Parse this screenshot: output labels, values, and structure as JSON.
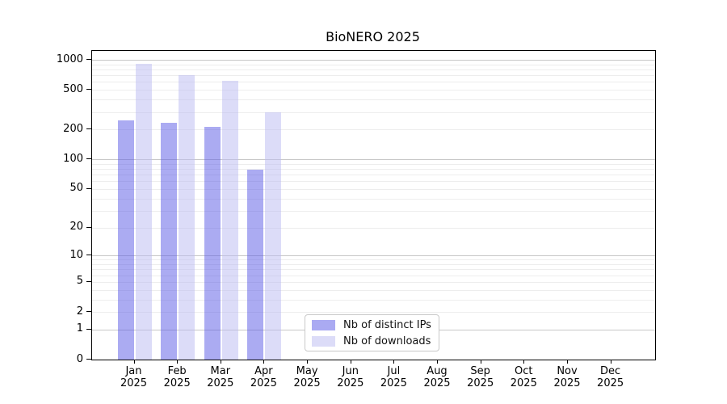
{
  "title": "BioNERO 2025",
  "legend": {
    "items": [
      {
        "label": "Nb of distinct IPs",
        "swatch_color": "#aaaaf2",
        "bar_fill": "rgba(87,87,229,0.5)"
      },
      {
        "label": "Nb of downloads",
        "swatch_color": "#dcdcf8",
        "bar_fill": "rgba(185,185,241,0.5)"
      }
    ]
  },
  "chart_data": {
    "type": "bar",
    "title": "BioNERO 2025",
    "xlabel": "",
    "ylabel": "",
    "yscale": "symlog(ln(1+v))",
    "ylim": [
      0,
      1230
    ],
    "grid": "horizontal major+minor",
    "legend_position": "lower center-left inside plot",
    "categories": [
      "Jan 2025",
      "Feb 2025",
      "Mar 2025",
      "Apr 2025",
      "May 2025",
      "Jun 2025",
      "Jul 2025",
      "Aug 2025",
      "Sep 2025",
      "Oct 2025",
      "Nov 2025",
      "Dec 2025"
    ],
    "category_lines": [
      {
        "month": "Jan",
        "year": "2025"
      },
      {
        "month": "Feb",
        "year": "2025"
      },
      {
        "month": "Mar",
        "year": "2025"
      },
      {
        "month": "Apr",
        "year": "2025"
      },
      {
        "month": "May",
        "year": "2025"
      },
      {
        "month": "Jun",
        "year": "2025"
      },
      {
        "month": "Jul",
        "year": "2025"
      },
      {
        "month": "Aug",
        "year": "2025"
      },
      {
        "month": "Sep",
        "year": "2025"
      },
      {
        "month": "Oct",
        "year": "2025"
      },
      {
        "month": "Nov",
        "year": "2025"
      },
      {
        "month": "Dec",
        "year": "2025"
      }
    ],
    "yticks": [
      0,
      1,
      2,
      5,
      10,
      20,
      50,
      100,
      200,
      500,
      1000
    ],
    "ytick_labels": [
      "0",
      "1",
      "2",
      "5",
      "10",
      "20",
      "50",
      "100",
      "200",
      "500",
      "1000"
    ],
    "major_grid_values": [
      1,
      10,
      100,
      1000
    ],
    "minor_grid_subs": [
      2,
      3,
      4,
      5,
      6,
      7,
      8,
      9
    ],
    "series": [
      {
        "name": "Nb of distinct IPs",
        "color": "#aaaaf2",
        "bar_fill": "rgba(87,87,229,0.5)",
        "values": [
          248,
          232,
          212,
          78,
          null,
          null,
          null,
          null,
          null,
          null,
          null,
          null
        ]
      },
      {
        "name": "Nb of downloads",
        "color": "#dcdcf8",
        "bar_fill": "rgba(185,185,241,0.5)",
        "values": [
          910,
          700,
          618,
          298,
          null,
          null,
          null,
          null,
          null,
          null,
          null,
          null
        ]
      }
    ],
    "colors": {
      "grid_major": "#c8c8c8",
      "grid_minor": "#ededed",
      "axis": "#000000",
      "background": "#ffffff"
    }
  }
}
